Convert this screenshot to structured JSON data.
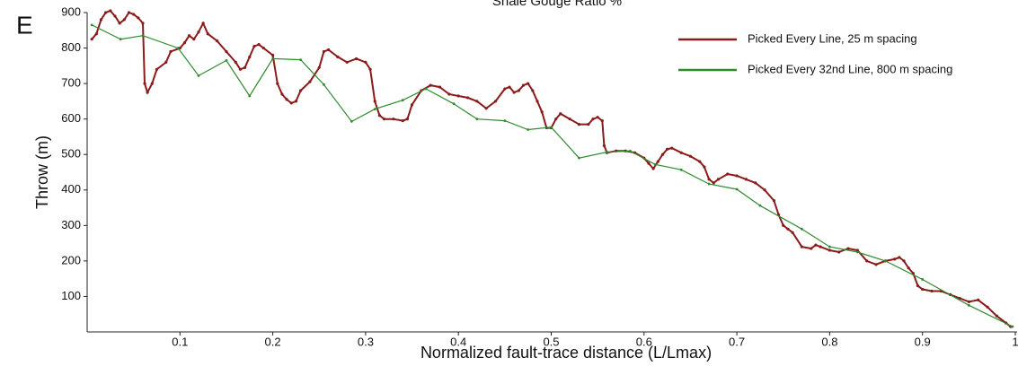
{
  "panel_label": "E",
  "chart_data": {
    "type": "line",
    "title": "Shale Gouge Ratio %",
    "x_label": "Normalized fault-trace distance (L/Lmax)",
    "y_label": "Throw (m)",
    "xlim": [
      0,
      1
    ],
    "ylim": [
      0,
      900
    ],
    "xticks": [
      0.1,
      0.2,
      0.3,
      0.4,
      0.5,
      0.6,
      0.7,
      0.8,
      0.9,
      1
    ],
    "yticks": [
      100,
      200,
      300,
      400,
      500,
      600,
      700,
      800,
      900
    ],
    "legend": "upper right",
    "series": [
      {
        "name": "Picked Every Line, 25 m spacing",
        "color": "#8b1a1a",
        "x": [
          0.005,
          0.01,
          0.015,
          0.02,
          0.025,
          0.03,
          0.035,
          0.04,
          0.045,
          0.05,
          0.055,
          0.06,
          0.062,
          0.065,
          0.07,
          0.075,
          0.085,
          0.09,
          0.1,
          0.105,
          0.11,
          0.115,
          0.12,
          0.125,
          0.13,
          0.14,
          0.15,
          0.16,
          0.165,
          0.17,
          0.175,
          0.18,
          0.185,
          0.19,
          0.2,
          0.205,
          0.21,
          0.215,
          0.22,
          0.225,
          0.23,
          0.24,
          0.25,
          0.255,
          0.26,
          0.27,
          0.28,
          0.29,
          0.3,
          0.305,
          0.31,
          0.315,
          0.32,
          0.33,
          0.34,
          0.345,
          0.35,
          0.36,
          0.37,
          0.38,
          0.39,
          0.4,
          0.41,
          0.42,
          0.43,
          0.44,
          0.45,
          0.455,
          0.46,
          0.465,
          0.47,
          0.475,
          0.48,
          0.485,
          0.49,
          0.495,
          0.5,
          0.505,
          0.51,
          0.52,
          0.53,
          0.54,
          0.545,
          0.55,
          0.555,
          0.557,
          0.56,
          0.57,
          0.58,
          0.59,
          0.6,
          0.605,
          0.61,
          0.615,
          0.62,
          0.625,
          0.63,
          0.64,
          0.65,
          0.66,
          0.665,
          0.67,
          0.675,
          0.68,
          0.69,
          0.7,
          0.71,
          0.72,
          0.73,
          0.74,
          0.745,
          0.75,
          0.755,
          0.76,
          0.77,
          0.78,
          0.785,
          0.79,
          0.8,
          0.81,
          0.82,
          0.83,
          0.84,
          0.85,
          0.86,
          0.87,
          0.875,
          0.88,
          0.885,
          0.89,
          0.895,
          0.9,
          0.91,
          0.92,
          0.93,
          0.94,
          0.95,
          0.96,
          0.97,
          0.98,
          0.99,
          0.995
        ],
        "values": [
          825,
          840,
          880,
          900,
          905,
          890,
          870,
          880,
          900,
          895,
          885,
          870,
          700,
          675,
          700,
          740,
          760,
          790,
          800,
          815,
          835,
          825,
          845,
          870,
          840,
          820,
          790,
          760,
          740,
          745,
          775,
          805,
          810,
          800,
          780,
          700,
          670,
          655,
          645,
          650,
          680,
          705,
          745,
          790,
          795,
          775,
          760,
          770,
          760,
          740,
          650,
          610,
          600,
          600,
          595,
          600,
          640,
          680,
          695,
          690,
          670,
          665,
          660,
          650,
          630,
          650,
          685,
          690,
          675,
          680,
          695,
          700,
          680,
          650,
          620,
          575,
          575,
          600,
          615,
          600,
          585,
          585,
          600,
          605,
          595,
          525,
          505,
          510,
          510,
          505,
          490,
          475,
          460,
          480,
          500,
          515,
          518,
          505,
          495,
          480,
          465,
          430,
          420,
          430,
          445,
          440,
          430,
          420,
          400,
          370,
          330,
          300,
          290,
          280,
          240,
          235,
          245,
          240,
          230,
          225,
          235,
          230,
          200,
          190,
          200,
          205,
          210,
          200,
          180,
          165,
          130,
          120,
          115,
          115,
          105,
          95,
          85,
          90,
          70,
          45,
          25,
          15
        ]
      },
      {
        "name": "Picked Every 32nd Line, 800 m spacing",
        "color": "#2e8b2e",
        "x": [
          0.005,
          0.036,
          0.06,
          0.098,
          0.12,
          0.15,
          0.175,
          0.2,
          0.23,
          0.255,
          0.285,
          0.31,
          0.34,
          0.365,
          0.395,
          0.42,
          0.45,
          0.475,
          0.5,
          0.53,
          0.56,
          0.585,
          0.612,
          0.64,
          0.67,
          0.7,
          0.725,
          0.77,
          0.8,
          0.83,
          0.86,
          0.9,
          0.95,
          0.997
        ],
        "values": [
          865,
          825,
          835,
          800,
          722,
          765,
          665,
          770,
          767,
          697,
          593,
          628,
          653,
          685,
          643,
          600,
          595,
          570,
          577,
          490,
          507,
          510,
          472,
          457,
          417,
          402,
          356,
          290,
          240,
          225,
          200,
          148,
          75,
          15
        ]
      }
    ]
  }
}
